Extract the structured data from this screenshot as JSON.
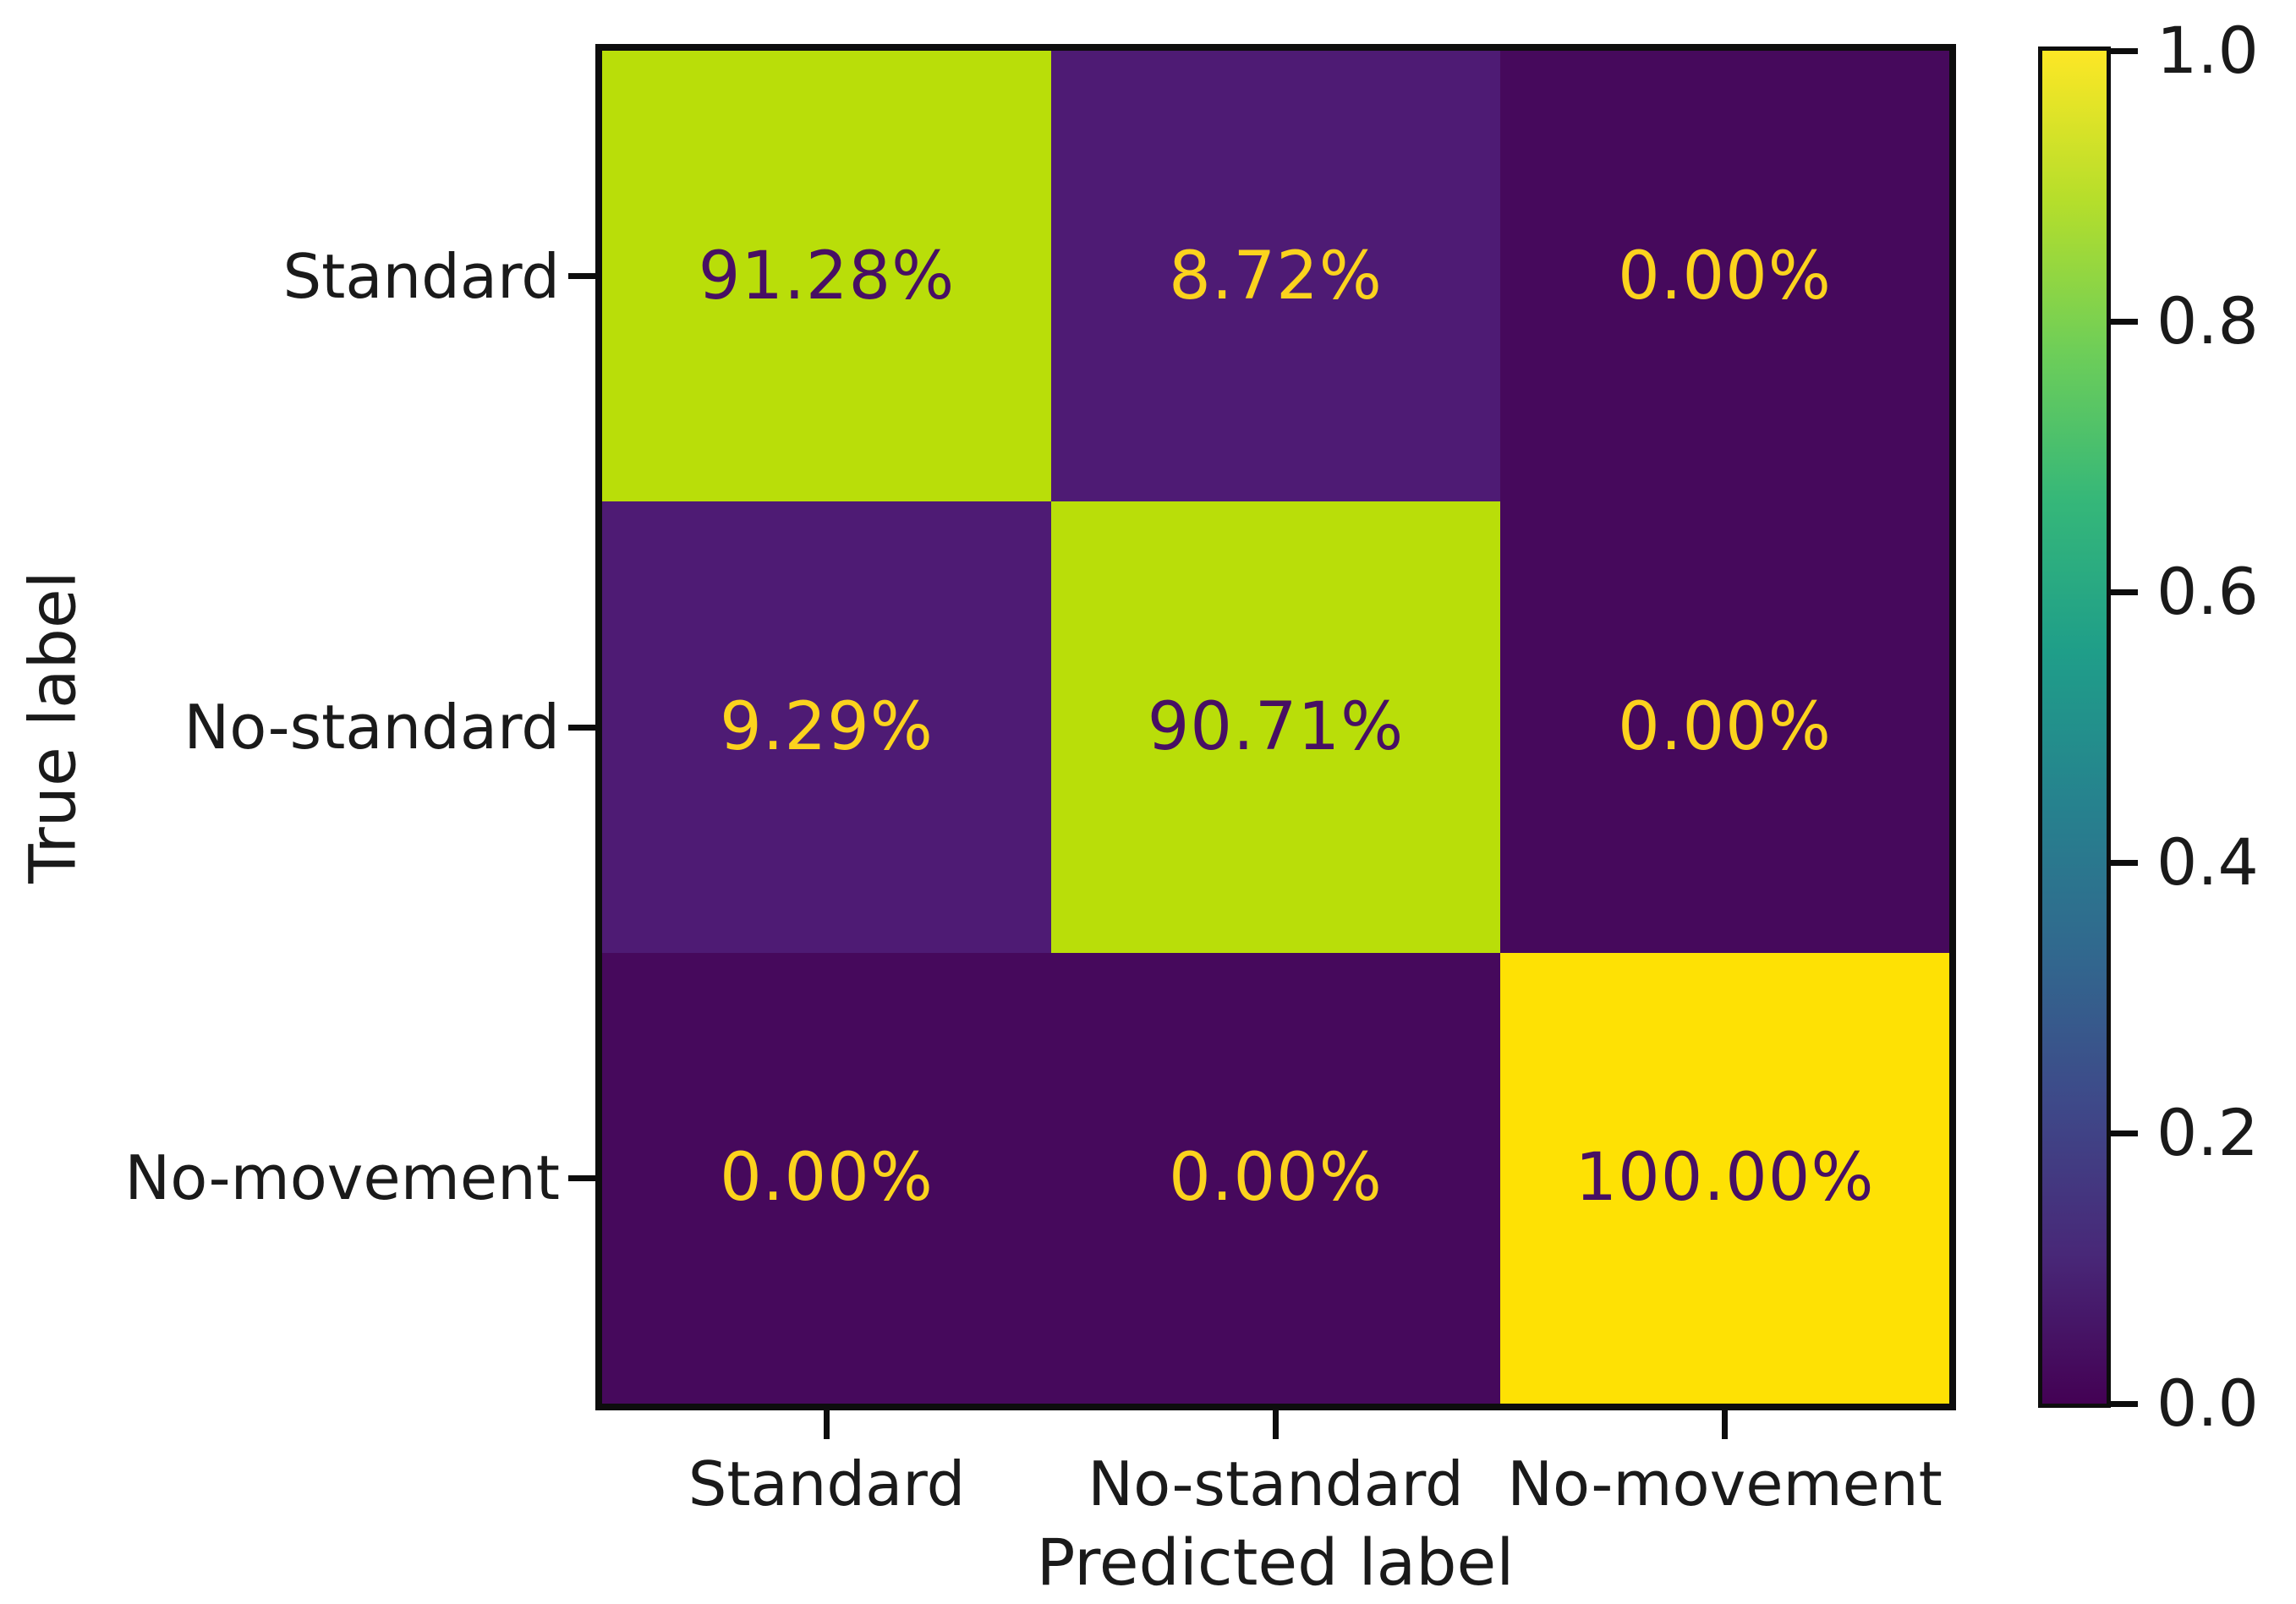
{
  "chart_data": {
    "type": "heatmap",
    "title": "",
    "xlabel": "Predicted label",
    "ylabel": "True label",
    "x_categories": [
      "Standard",
      "No-standard",
      "No-movement"
    ],
    "y_categories": [
      "Standard",
      "No-standard",
      "No-movement"
    ],
    "values": [
      [
        0.9128,
        0.0872,
        0.0
      ],
      [
        0.0929,
        0.9071,
        0.0
      ],
      [
        0.0,
        0.0,
        1.0
      ]
    ],
    "cell_labels": [
      [
        "91.28%",
        "8.72%",
        "0.00%"
      ],
      [
        "9.29%",
        "90.71%",
        "0.00%"
      ],
      [
        "0.00%",
        "0.00%",
        "100.00%"
      ]
    ],
    "colormap": "viridis",
    "value_range": [
      0.0,
      1.0
    ],
    "grid": false,
    "colorbar": {
      "position": "right",
      "tick_labels": [
        "1.0",
        "0.8",
        "0.6",
        "0.4",
        "0.2",
        "0.0"
      ],
      "tick_values": [
        1.0,
        0.8,
        0.6,
        0.4,
        0.2,
        0.0
      ]
    }
  },
  "colors": {
    "cell_bg": [
      [
        "#b9de09",
        "#4e1b74",
        "#46095c"
      ],
      [
        "#4e1b74",
        "#b9de09",
        "#46095c"
      ],
      [
        "#46095c",
        "#46095c",
        "#fee104"
      ]
    ],
    "cell_text": [
      [
        "#470f63",
        "#fcd31d",
        "#fcd31d"
      ],
      [
        "#fcd31d",
        "#470f63",
        "#fcd31d"
      ],
      [
        "#fcd31d",
        "#fcd31d",
        "#470f63"
      ]
    ],
    "axis_line": "#0d0d0d",
    "label_text": "#1a1a1a",
    "viridis_stops": [
      "#440154",
      "#482878",
      "#3e4989",
      "#31688e",
      "#26828e",
      "#1f9e89",
      "#35b779",
      "#6ece58",
      "#b5de2b",
      "#fde725"
    ]
  }
}
